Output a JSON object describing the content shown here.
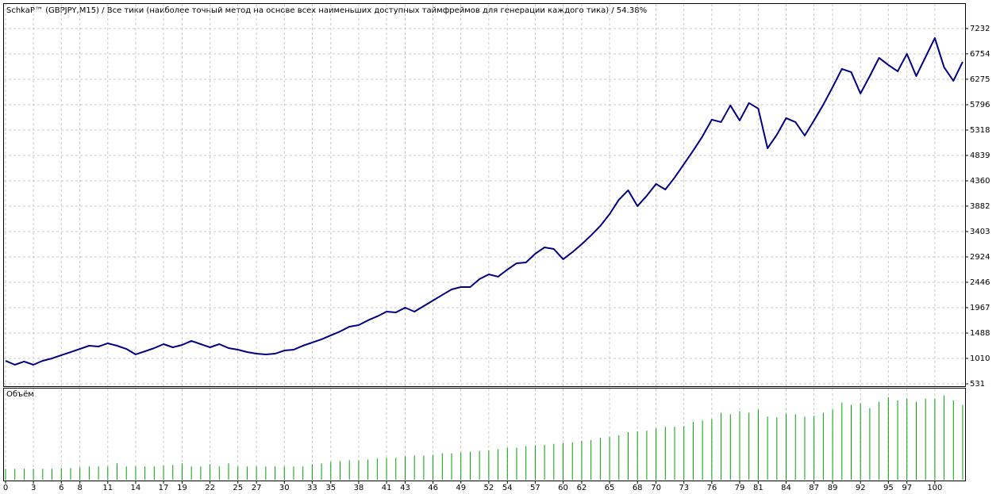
{
  "chart_data": [
    {
      "type": "line",
      "title": "SchkaP™ (GBPJPY,M15) / Все тики (наиболее точный метод на основе всех наименьших доступных таймфреймов для генерации каждого тика) / 54.38%",
      "x": [
        0,
        1,
        2,
        3,
        4,
        5,
        6,
        7,
        8,
        9,
        10,
        11,
        12,
        13,
        14,
        15,
        16,
        17,
        18,
        19,
        20,
        21,
        22,
        23,
        24,
        25,
        26,
        27,
        28,
        29,
        30,
        31,
        32,
        33,
        34,
        35,
        36,
        37,
        38,
        39,
        40,
        41,
        42,
        43,
        44,
        45,
        46,
        47,
        48,
        49,
        50,
        51,
        52,
        53,
        54,
        55,
        56,
        57,
        58,
        59,
        60,
        61,
        62,
        63,
        64,
        65,
        66,
        67,
        68,
        69,
        70,
        71,
        72,
        73,
        74,
        75,
        76,
        77,
        78,
        79,
        80,
        81,
        82,
        83,
        84,
        85,
        86,
        87,
        88,
        89,
        90,
        91,
        92,
        93,
        94,
        95,
        96,
        97,
        98,
        99,
        100,
        101,
        102,
        103
      ],
      "values": [
        965,
        890,
        950,
        890,
        965,
        1010,
        1070,
        1129,
        1189,
        1249,
        1234,
        1294,
        1249,
        1189,
        1085,
        1144,
        1204,
        1279,
        1219,
        1264,
        1339,
        1279,
        1219,
        1279,
        1204,
        1174,
        1129,
        1099,
        1085,
        1099,
        1159,
        1174,
        1249,
        1309,
        1369,
        1444,
        1518,
        1608,
        1638,
        1728,
        1803,
        1892,
        1877,
        1967,
        1892,
        1997,
        2102,
        2207,
        2311,
        2356,
        2356,
        2506,
        2595,
        2551,
        2685,
        2805,
        2820,
        2984,
        3104,
        3074,
        2880,
        3014,
        3164,
        3329,
        3508,
        3732,
        4002,
        4181,
        3882,
        4077,
        4301,
        4196,
        4421,
        4675,
        4929,
        5199,
        5513,
        5468,
        5782,
        5498,
        5827,
        5722,
        4974,
        5228,
        5543,
        5468,
        5213,
        5498,
        5797,
        6126,
        6470,
        6410,
        6006,
        6335,
        6680,
        6545,
        6425,
        6754,
        6335,
        6695,
        7054,
        6500,
        6246,
        6605
      ],
      "color": "#000080",
      "xlim": [
        0,
        103.6
      ],
      "ylim": [
        531,
        7232
      ],
      "yticks": [
        531,
        1010,
        1488,
        1967,
        2446,
        2924,
        3403,
        3882,
        4360,
        4839,
        5318,
        5796,
        6275,
        6754,
        7232
      ],
      "xticks": [
        0,
        3,
        6,
        8,
        11,
        14,
        17,
        19,
        22,
        25,
        27,
        30,
        33,
        35,
        38,
        41,
        43,
        46,
        49,
        52,
        54,
        57,
        60,
        62,
        65,
        68,
        70,
        73,
        76,
        79,
        81,
        84,
        87,
        89,
        92,
        95,
        97,
        100
      ],
      "grid": true
    },
    {
      "type": "bar",
      "title": "Объём",
      "values": [
        14,
        14,
        14,
        14,
        14,
        14,
        15,
        15,
        16,
        17,
        17,
        17,
        21,
        17,
        17,
        17,
        17,
        18,
        19,
        21,
        17,
        17,
        20,
        17,
        21,
        17,
        17,
        17,
        17,
        17,
        17,
        17,
        17,
        20,
        21,
        23,
        24,
        25,
        25,
        26,
        27,
        28,
        28,
        30,
        31,
        31,
        32,
        34,
        34,
        35,
        36,
        37,
        38,
        39,
        41,
        41,
        43,
        44,
        45,
        46,
        47,
        48,
        50,
        51,
        54,
        55,
        57,
        61,
        62,
        63,
        66,
        68,
        68,
        69,
        74,
        76,
        78,
        86,
        84,
        88,
        86,
        90,
        81,
        80,
        85,
        84,
        81,
        82,
        86,
        90,
        99,
        96,
        98,
        92,
        100,
        106,
        102,
        104,
        100,
        104,
        104,
        108,
        102,
        96
      ],
      "color": "#00a000",
      "ylim": [
        0,
        116
      ]
    }
  ]
}
